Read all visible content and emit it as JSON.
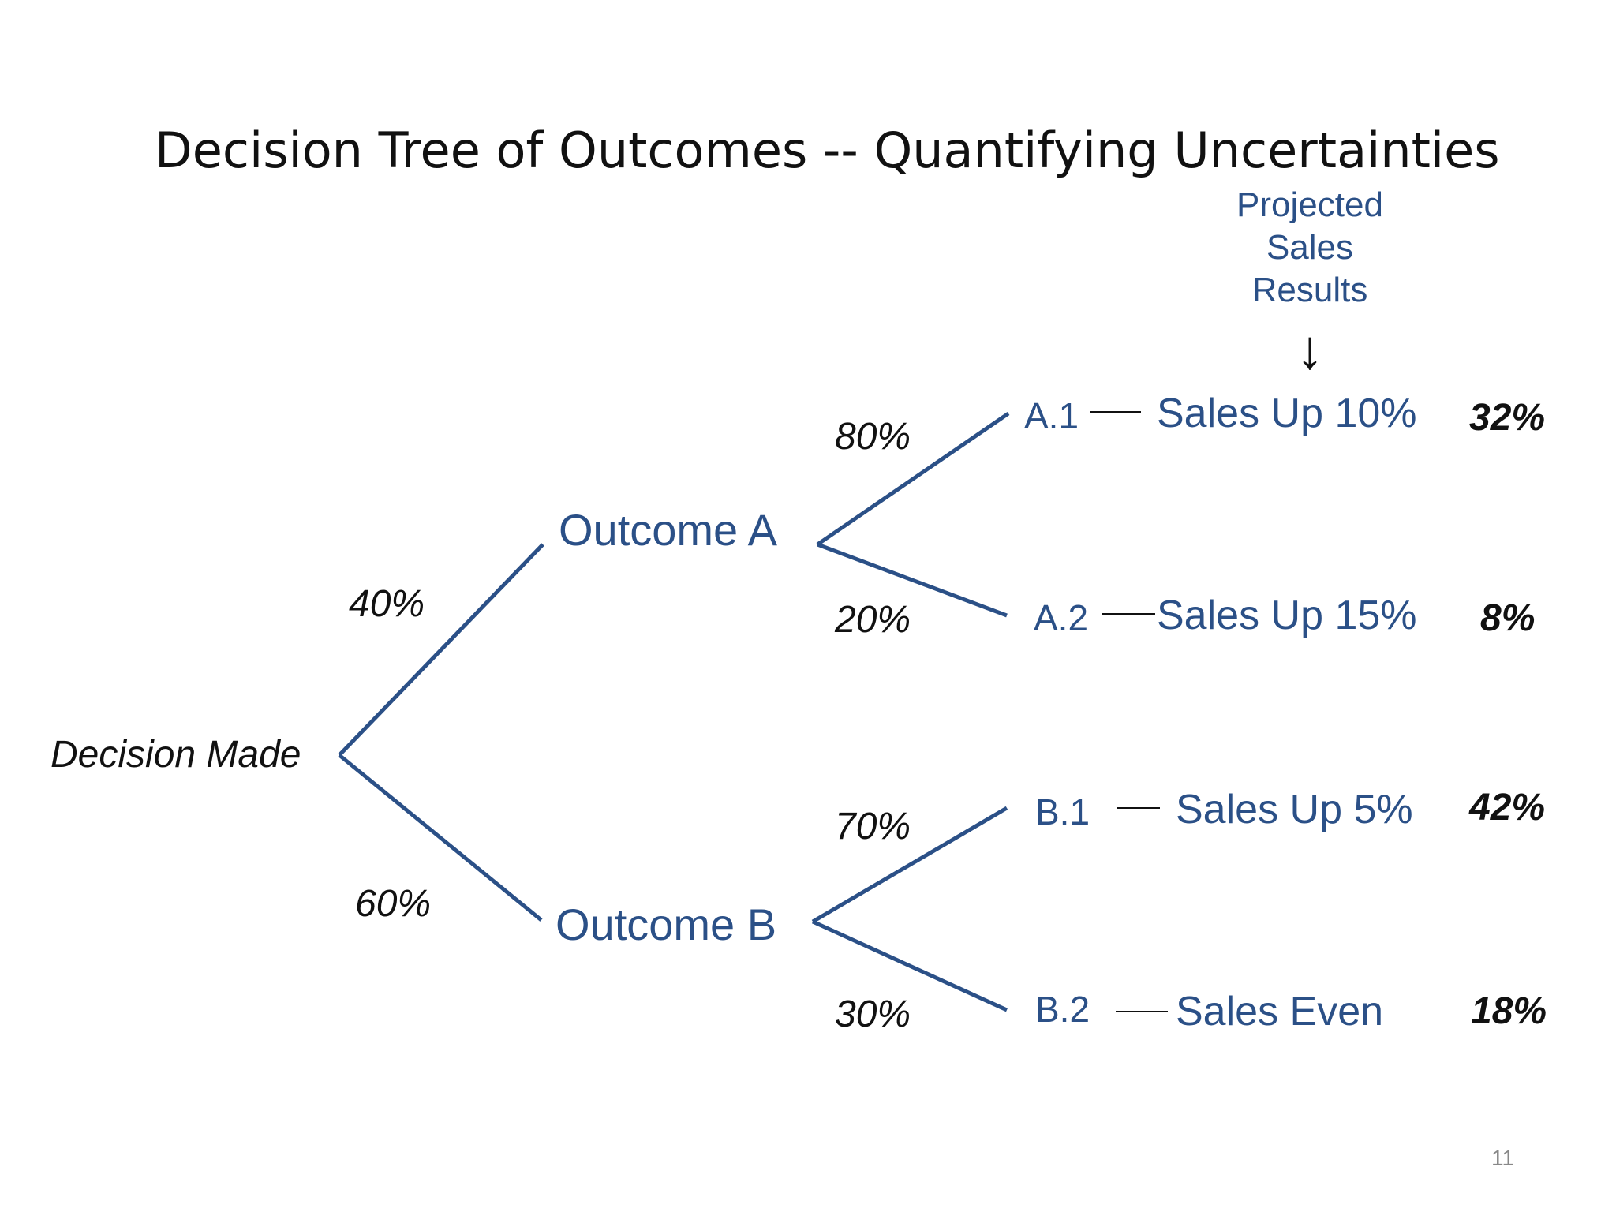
{
  "slide": {
    "title": "Decision Tree of Outcomes -- Quantifying Uncertainties",
    "header": {
      "line1": "Projected",
      "line2": "Sales",
      "line3": "Results",
      "arrow": "↓"
    },
    "root_label": "Decision Made",
    "branches": {
      "a": {
        "label": "Outcome A",
        "probability": "40%",
        "children": [
          {
            "code": "A.1",
            "result": "Sales Up 10%",
            "probability": "80%",
            "joint": "32%"
          },
          {
            "code": "A.2",
            "result": "Sales Up 15%",
            "probability": "20%",
            "joint": "8%"
          }
        ]
      },
      "b": {
        "label": "Outcome B",
        "probability": "60%",
        "children": [
          {
            "code": "B.1",
            "result": "Sales Up 5%",
            "probability": "70%",
            "joint": "42%"
          },
          {
            "code": "B.2",
            "result": "Sales Even",
            "probability": "30%",
            "joint": "18%"
          }
        ]
      }
    },
    "page_number": "11",
    "colors": {
      "accent": "#2b5087",
      "text": "#111111",
      "page_number": "#888888"
    }
  }
}
